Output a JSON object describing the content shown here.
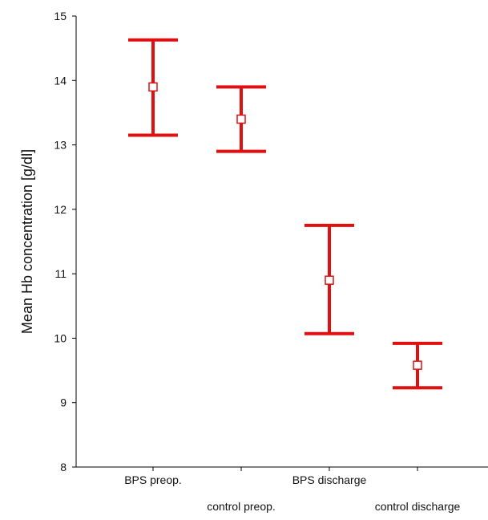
{
  "chart_data": {
    "type": "errorbar",
    "title": "",
    "xlabel": "",
    "ylabel": "Mean Hb concentration [g/dl]",
    "ylim": [
      8,
      15
    ],
    "yticks": [
      8,
      9,
      10,
      11,
      12,
      13,
      14,
      15
    ],
    "grid": false,
    "legend": "none",
    "categories": [
      "BPS preop.",
      "control preop.",
      "BPS discharge",
      "control discharge"
    ],
    "means": [
      13.9,
      13.4,
      10.9,
      9.58
    ],
    "lower": [
      13.15,
      12.9,
      10.07,
      9.23
    ],
    "upper": [
      14.63,
      13.9,
      11.75,
      9.92
    ],
    "color": "#e01010"
  }
}
